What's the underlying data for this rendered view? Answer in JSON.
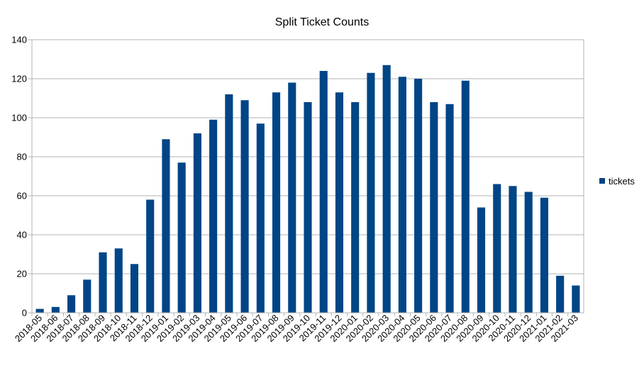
{
  "chart_data": {
    "type": "bar",
    "title": "Split Ticket Counts",
    "xlabel": "",
    "ylabel": "",
    "ylim": [
      0,
      140
    ],
    "yticks": [
      0,
      20,
      40,
      60,
      80,
      100,
      120,
      140
    ],
    "grid": true,
    "legend_position": "right",
    "categories": [
      "2018-05",
      "2018-06",
      "2018-07",
      "2018-08",
      "2018-09",
      "2018-10",
      "2018-11",
      "2018-12",
      "2019-01",
      "2019-02",
      "2019-03",
      "2019-04",
      "2019-05",
      "2019-06",
      "2019-07",
      "2019-08",
      "2019-09",
      "2019-10",
      "2019-11",
      "2019-12",
      "2020-01",
      "2020-02",
      "2020-03",
      "2020-04",
      "2020-05",
      "2020-06",
      "2020-07",
      "2020-08",
      "2020-09",
      "2020-10",
      "2020-11",
      "2020-12",
      "2021-01",
      "2021-02",
      "2021-03"
    ],
    "series": [
      {
        "name": "tickets",
        "color": "#004586",
        "values": [
          2,
          3,
          9,
          17,
          31,
          33,
          25,
          58,
          89,
          77,
          92,
          99,
          112,
          109,
          97,
          113,
          118,
          108,
          124,
          113,
          108,
          123,
          127,
          121,
          120,
          108,
          107,
          119,
          54,
          66,
          65,
          62,
          59,
          19,
          14
        ]
      }
    ]
  }
}
